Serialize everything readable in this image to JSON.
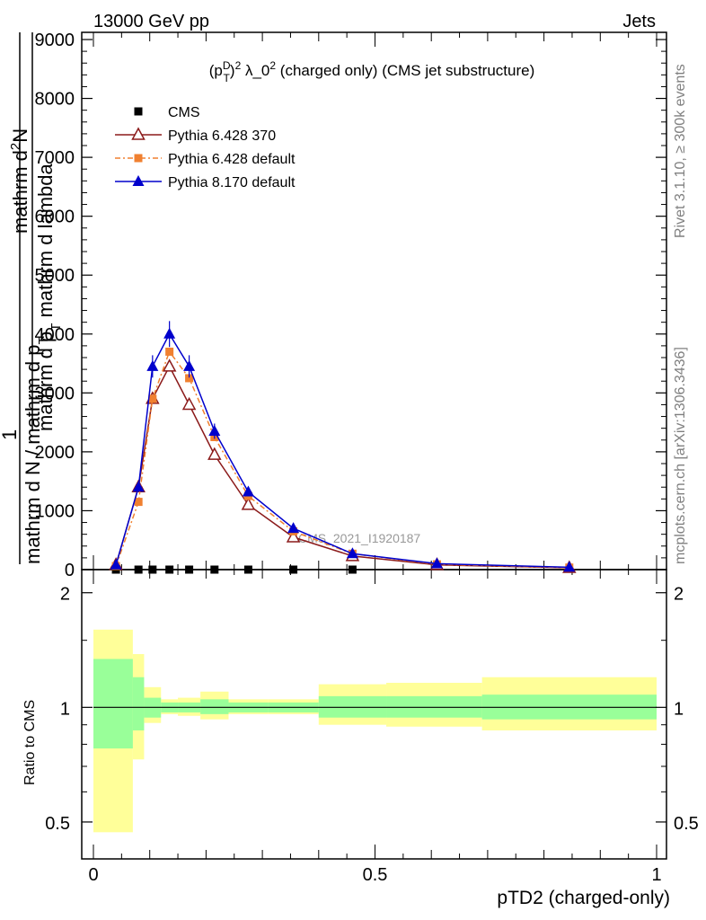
{
  "header": {
    "left": "13000 GeV pp",
    "right": "Jets"
  },
  "side": {
    "rivet": "Rivet 3.1.10, ≥ 300k events",
    "mcplots": "mcplots.cern.ch [arXiv:1306.3436]"
  },
  "watermark": "CMS_2021_I1920187",
  "chart_data": [
    {
      "type": "line",
      "title": "(p_T^D)^2 λ_0^2 (charged only) (CMS jet substructure)",
      "title_parts": {
        "p": "(p",
        "sup_D": "D",
        "sub_T": "T",
        "close": ")",
        "sup_2": "2",
        "lambda": " λ_0",
        "sup_2b": "2",
        "rest": " (charged only) (CMS jet substructure)"
      },
      "ylabel": "1 / mathrm d N / mathrm d p_T mathrm d^2N / mathrm d p_T mathrm d lambda",
      "ylabel_parts": {
        "numer_line1": "1",
        "denom_line1": "mathrm d N",
        "slash": "/",
        "frac2_num": "mathrm d",
        "frac2_num_sup": "2",
        "frac2_num_rest": "N",
        "frac2_den_1": "mathrm d p",
        "frac2_den_sub": "T",
        "frac2_den_2": "mathrm d",
        "frac2_den_3": "mathrm d lambda",
        "denom_full": "mathrm d N / mathrm d p",
        "denom_sub": "T"
      },
      "xlim": [
        0,
        1
      ],
      "ylim": [
        0,
        9000
      ],
      "yticks": [
        0,
        1000,
        2000,
        3000,
        4000,
        5000,
        6000,
        7000,
        8000,
        9000
      ],
      "ytick_labels": [
        "0",
        "1000",
        "2000",
        "3000",
        "4000",
        "5000",
        "6000",
        "7000",
        "8000",
        "9000"
      ],
      "legend_position": "top-left",
      "series": [
        {
          "name": "CMS",
          "color": "#000000",
          "marker": "square",
          "x": [
            0.04,
            0.08,
            0.105,
            0.135,
            0.17,
            0.215,
            0.275,
            0.355,
            0.46
          ],
          "y": [
            0,
            0,
            0,
            0,
            0,
            0,
            0,
            0,
            0
          ]
        },
        {
          "name": "Pythia 6.428 370",
          "color": "#8b1a1a",
          "marker": "open-triangle",
          "x": [
            0.04,
            0.08,
            0.105,
            0.135,
            0.17,
            0.215,
            0.275,
            0.355,
            0.46,
            0.61,
            0.845
          ],
          "y": [
            80,
            1400,
            2900,
            3450,
            2800,
            1950,
            1100,
            550,
            230,
            80,
            30
          ]
        },
        {
          "name": "Pythia 6.428 default",
          "color": "#f08030",
          "marker": "square",
          "x": [
            0.04,
            0.08,
            0.105,
            0.135,
            0.17,
            0.215,
            0.275,
            0.355,
            0.46,
            0.61,
            0.845
          ],
          "y": [
            60,
            1150,
            2900,
            3700,
            3250,
            2250,
            1250,
            650,
            270,
            90,
            35
          ]
        },
        {
          "name": "Pythia 8.170 default",
          "color": "#0000cc",
          "marker": "filled-triangle",
          "x": [
            0.04,
            0.08,
            0.105,
            0.135,
            0.17,
            0.215,
            0.275,
            0.355,
            0.46,
            0.61,
            0.845
          ],
          "y": [
            80,
            1400,
            3450,
            4000,
            3450,
            2350,
            1320,
            700,
            270,
            100,
            40
          ]
        }
      ]
    },
    {
      "type": "area",
      "ylabel": "Ratio to CMS",
      "xlabel": "pTD2 (charged-only)",
      "xlim": [
        0,
        1
      ],
      "ylim": [
        0.4,
        2.3
      ],
      "log_y": true,
      "yticks": [
        0.5,
        1,
        2
      ],
      "ytick_labels": [
        "0.5",
        "1",
        "2"
      ],
      "xticks": [
        0,
        0.5,
        1
      ],
      "xtick_labels": [
        "0",
        "0.5",
        "1"
      ],
      "reference": 1,
      "bands": {
        "bin_edges": [
          0,
          0.07,
          0.09,
          0.12,
          0.15,
          0.19,
          0.24,
          0.31,
          0.4,
          0.52,
          0.69,
          1.0
        ],
        "stat": {
          "color": "#99ff99",
          "low": [
            0.78,
            0.87,
            0.94,
            0.97,
            0.97,
            0.96,
            0.97,
            0.97,
            0.94,
            0.94,
            0.93
          ],
          "high": [
            1.34,
            1.2,
            1.06,
            1.03,
            1.03,
            1.05,
            1.03,
            1.03,
            1.07,
            1.07,
            1.08
          ]
        },
        "total": {
          "color": "#ffff99",
          "low": [
            0.47,
            0.73,
            0.91,
            0.96,
            0.95,
            0.93,
            0.96,
            0.96,
            0.9,
            0.89,
            0.87
          ],
          "high": [
            1.6,
            1.38,
            1.13,
            1.05,
            1.06,
            1.1,
            1.05,
            1.05,
            1.15,
            1.16,
            1.2
          ]
        }
      }
    }
  ]
}
